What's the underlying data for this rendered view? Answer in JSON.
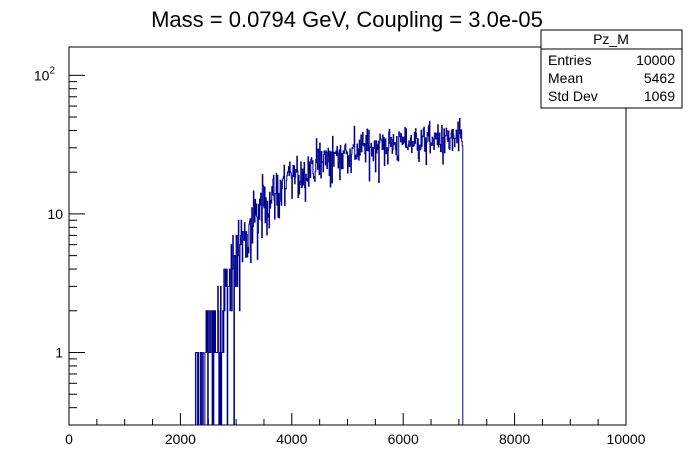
{
  "chart_data": {
    "type": "histogram",
    "title": "Mass = 0.0794 GeV, Coupling = 3.0e-05",
    "xlabel": "",
    "ylabel": "",
    "xlim": [
      0,
      10000
    ],
    "ylim": [
      0.3,
      160
    ],
    "yscale": "log",
    "grid": false,
    "legend": "none",
    "line_color": "#00008b",
    "x_ticks": [
      {
        "value": 0,
        "label": "0"
      },
      {
        "value": 2000,
        "label": "2000"
      },
      {
        "value": 4000,
        "label": "4000"
      },
      {
        "value": 6000,
        "label": "6000"
      },
      {
        "value": 8000,
        "label": "8000"
      },
      {
        "value": 10000,
        "label": "10000"
      }
    ],
    "y_ticks": [
      {
        "value": 1,
        "label": "1"
      },
      {
        "value": 10,
        "label": "10"
      },
      {
        "value": 100,
        "label": "10",
        "exp": "2"
      }
    ],
    "bin_width": 10,
    "envelope": [
      {
        "x": 2100,
        "y": 0.3
      },
      {
        "x": 2300,
        "y": 1.0
      },
      {
        "x": 2600,
        "y": 2.0
      },
      {
        "x": 3000,
        "y": 5.0
      },
      {
        "x": 3500,
        "y": 12.0
      },
      {
        "x": 4000,
        "y": 18.0
      },
      {
        "x": 4500,
        "y": 24.0
      },
      {
        "x": 5000,
        "y": 28.0
      },
      {
        "x": 5500,
        "y": 31.0
      },
      {
        "x": 6000,
        "y": 33.0
      },
      {
        "x": 6500,
        "y": 34.0
      },
      {
        "x": 7070,
        "y": 34.0
      }
    ],
    "x_start": 2100,
    "x_end": 7070,
    "stats_box": {
      "name": "Pz_M",
      "rows": [
        {
          "label": "Entries",
          "value": "10000"
        },
        {
          "label": "Mean",
          "value": "5462"
        },
        {
          "label": "Std Dev",
          "value": "1069"
        }
      ]
    }
  }
}
